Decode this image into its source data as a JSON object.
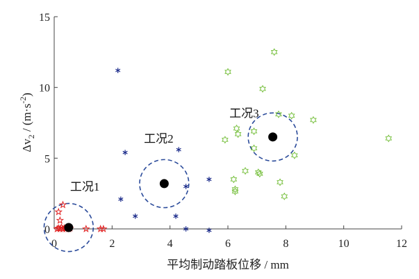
{
  "chart_data": {
    "type": "scatter",
    "xlabel": "平均制动踏板位移 / mm",
    "ylabel_main": "Δv",
    "ylabel_sub": "2",
    "ylabel_unit": " / (m·s",
    "ylabel_sup": "-2",
    "ylabel_close": ")",
    "xlim": [
      0,
      12
    ],
    "ylim": [
      0,
      15
    ],
    "xticks": [
      0,
      2,
      4,
      6,
      8,
      10,
      12
    ],
    "yticks": [
      0,
      5,
      10,
      15
    ],
    "xtick_labels": [
      "0",
      "2",
      "4",
      "6",
      "8",
      "10",
      "12"
    ],
    "ytick_labels": [
      "0",
      "5",
      "10",
      "15"
    ],
    "grid": false,
    "series": [
      {
        "marker": "star",
        "color": "#e02020",
        "points": [
          [
            0.1,
            0.0
          ],
          [
            0.15,
            0.05
          ],
          [
            0.2,
            0.0
          ],
          [
            0.25,
            0.1
          ],
          [
            0.3,
            0.0
          ],
          [
            0.35,
            0.05
          ],
          [
            0.4,
            0.0
          ],
          [
            0.5,
            0.0
          ],
          [
            0.55,
            0.05
          ],
          [
            0.2,
            0.6
          ],
          [
            0.15,
            1.2
          ],
          [
            0.3,
            1.7
          ],
          [
            1.1,
            0.0
          ],
          [
            1.6,
            0.0
          ],
          [
            1.7,
            0.0
          ]
        ]
      },
      {
        "marker": "asterisk",
        "color": "#1a2a8a",
        "points": [
          [
            2.2,
            11.2
          ],
          [
            2.45,
            5.4
          ],
          [
            2.3,
            2.1
          ],
          [
            2.8,
            0.9
          ],
          [
            4.3,
            5.6
          ],
          [
            4.55,
            3.0
          ],
          [
            4.2,
            0.9
          ],
          [
            4.55,
            0.0
          ],
          [
            5.35,
            3.5
          ],
          [
            5.35,
            -0.1
          ]
        ]
      },
      {
        "marker": "hexagram",
        "color": "#7ac142",
        "points": [
          [
            5.9,
            6.3
          ],
          [
            6.0,
            11.1
          ],
          [
            6.2,
            3.5
          ],
          [
            6.25,
            2.8
          ],
          [
            6.25,
            2.65
          ],
          [
            6.3,
            7.1
          ],
          [
            6.35,
            6.7
          ],
          [
            6.6,
            4.1
          ],
          [
            6.9,
            6.9
          ],
          [
            6.9,
            5.7
          ],
          [
            7.05,
            4.0
          ],
          [
            7.1,
            3.9
          ],
          [
            7.2,
            9.9
          ],
          [
            7.6,
            12.5
          ],
          [
            7.75,
            8.1
          ],
          [
            7.8,
            3.3
          ],
          [
            7.95,
            2.3
          ],
          [
            8.2,
            8.0
          ],
          [
            8.3,
            5.2
          ],
          [
            8.95,
            7.7
          ],
          [
            11.55,
            6.4
          ]
        ]
      }
    ],
    "centroids": [
      {
        "x": 0.5,
        "y": 0.1,
        "rx": 0.85,
        "ry": 1.7
      },
      {
        "x": 3.8,
        "y": 3.2,
        "rx": 0.85,
        "ry": 1.7
      },
      {
        "x": 7.55,
        "y": 6.5,
        "rx": 0.85,
        "ry": 1.7
      }
    ],
    "annotations": [
      {
        "text": "工况1",
        "x": 0.55,
        "y": 2.7
      },
      {
        "text": "工况2",
        "x": 3.1,
        "y": 6.1
      },
      {
        "text": "工况3",
        "x": 6.05,
        "y": 7.9
      }
    ]
  }
}
